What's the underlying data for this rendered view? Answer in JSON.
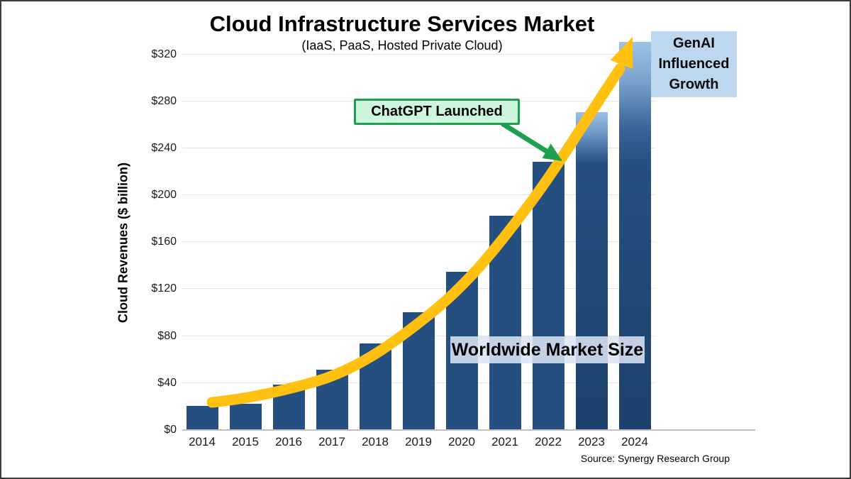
{
  "title": "Cloud Infrastructure Services Market",
  "subtitle": "(IaaS, PaaS, Hosted Private Cloud)",
  "source": "Source: Synergy Research Group",
  "annotations": {
    "chatgpt_label": "ChatGPT Launched",
    "worldwide_label": "Worldwide Market Size",
    "genai_line1": "GenAI",
    "genai_line2": "Influenced",
    "genai_line3": "Growth"
  },
  "colors": {
    "bar": "#254F80",
    "bar_gradient_top": "#9cc2e6",
    "growth_arrow": "#FFC010",
    "callout_border": "#1fa04f",
    "callout_fill": "#cdf6de",
    "genai_fill": "#bdd7ee",
    "gridline": "#e3e3e3"
  },
  "chart_data": {
    "type": "bar",
    "title": "Cloud Infrastructure Services Market",
    "subtitle": "(IaaS, PaaS, Hosted Private Cloud)",
    "xlabel": "",
    "ylabel": "Cloud Revenues ($ billion)",
    "categories": [
      "2014",
      "2015",
      "2016",
      "2017",
      "2018",
      "2019",
      "2020",
      "2021",
      "2022",
      "2023",
      "2024"
    ],
    "values": [
      20,
      22,
      38,
      51,
      73,
      100,
      134,
      182,
      228,
      270,
      330
    ],
    "ylim": [
      0,
      340
    ],
    "yticks": [
      0,
      40,
      80,
      120,
      160,
      200,
      240,
      280,
      320
    ],
    "ytick_labels": [
      "$0",
      "$40",
      "$80",
      "$120",
      "$160",
      "$200",
      "$240",
      "$280",
      "$320"
    ],
    "grid": true,
    "legend": "none",
    "notes": "2023 and 2024 bars fade to light blue at top indicating GenAI influenced growth; yellow exponential swoosh arrow from 2014 to above 2024; green callout arrow marks ChatGPT launch at 2022"
  }
}
